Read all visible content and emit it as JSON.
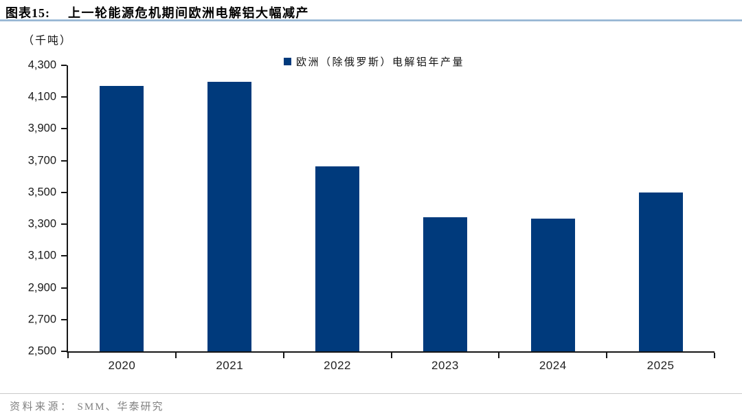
{
  "header": {
    "fig_label": "图表15:",
    "fig_title": "上一轮能源危机期间欧洲电解铝大幅减产"
  },
  "chart_data": {
    "type": "bar",
    "title": "上一轮能源危机期间欧洲电解铝大幅减产",
    "unit_label": "（千吨）",
    "series_name": "欧洲（除俄罗斯）电解铝年产量",
    "categories": [
      "2020",
      "2021",
      "2022",
      "2023",
      "2024",
      "2025"
    ],
    "values": [
      4170,
      4195,
      3665,
      3345,
      3335,
      3500
    ],
    "ylim": [
      2500,
      4300
    ],
    "ytick_step": 200,
    "ytick_labels": [
      "4,300",
      "4,100",
      "3,900",
      "3,700",
      "3,500",
      "3,300",
      "3,100",
      "2,900",
      "2,700",
      "2,500"
    ],
    "bar_color": "#003a7c",
    "legend_position": "top",
    "grid": false
  },
  "footer": {
    "source_label": "资料来源：",
    "source_text": "SMM、华泰研究"
  }
}
